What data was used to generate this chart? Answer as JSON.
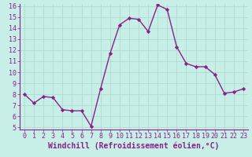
{
  "x": [
    0,
    1,
    2,
    3,
    4,
    5,
    6,
    7,
    8,
    9,
    10,
    11,
    12,
    13,
    14,
    15,
    16,
    17,
    18,
    19,
    20,
    21,
    22,
    23
  ],
  "y": [
    8.0,
    7.2,
    7.8,
    7.7,
    6.6,
    6.5,
    6.5,
    5.1,
    8.5,
    11.7,
    14.3,
    14.9,
    14.8,
    13.7,
    16.1,
    15.7,
    12.3,
    10.8,
    10.5,
    10.5,
    9.8,
    8.1,
    8.2,
    8.5
  ],
  "xlabel": "Windchill (Refroidissement éolien,°C)",
  "ylim": [
    5,
    16
  ],
  "xlim": [
    -0.5,
    23.5
  ],
  "yticks": [
    5,
    6,
    7,
    8,
    9,
    10,
    11,
    12,
    13,
    14,
    15,
    16
  ],
  "xticks": [
    0,
    1,
    2,
    3,
    4,
    5,
    6,
    7,
    8,
    9,
    10,
    11,
    12,
    13,
    14,
    15,
    16,
    17,
    18,
    19,
    20,
    21,
    22,
    23
  ],
  "line_color": "#882288",
  "marker": "D",
  "marker_size": 2.2,
  "bg_color": "#c8eee8",
  "grid_color": "#aaddcc",
  "axis_color": "#882288",
  "tick_label_color": "#882288",
  "xlabel_color": "#882288",
  "tick_fontsize": 6.0,
  "xlabel_fontsize": 7.0,
  "line_width": 1.0
}
